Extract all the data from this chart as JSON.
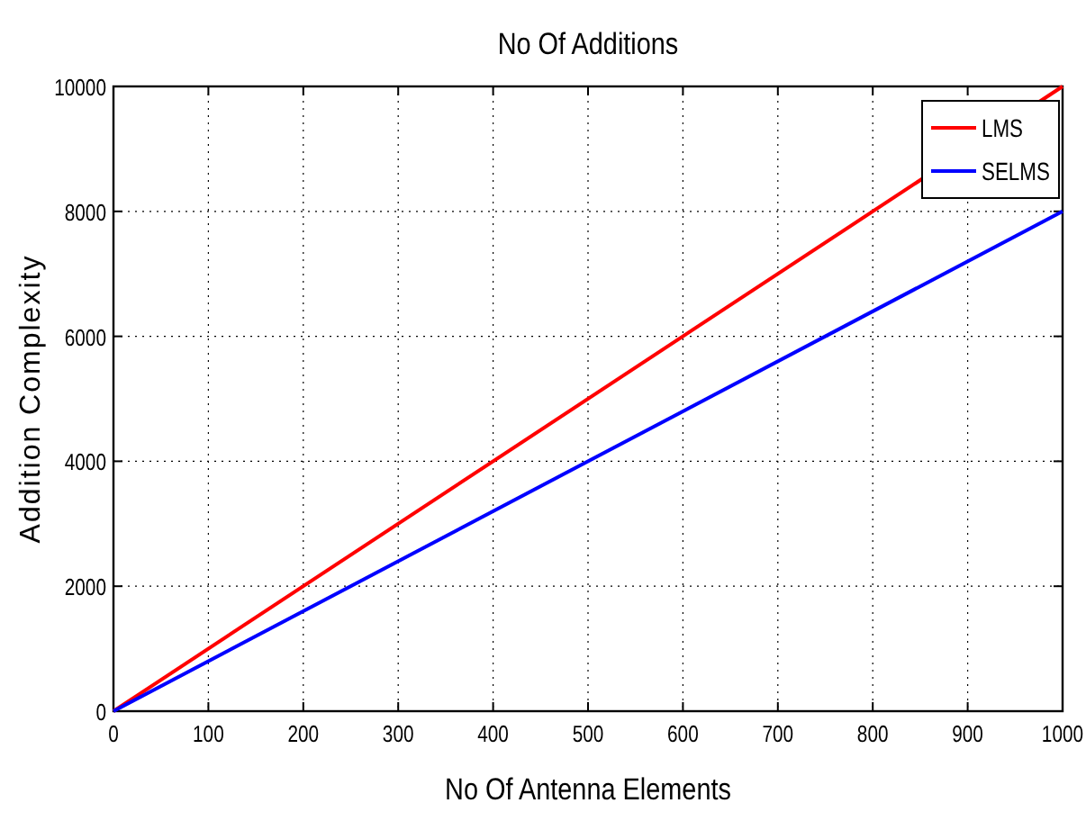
{
  "chart_data": {
    "type": "line",
    "title": "No Of Additions",
    "xlabel": "No Of Antenna Elements",
    "ylabel": "Addition Complexity",
    "x": [
      0,
      1000
    ],
    "series": [
      {
        "name": "LMS",
        "color": "#ff0000",
        "values": [
          0,
          10000
        ]
      },
      {
        "name": "SELMS",
        "color": "#0000ff",
        "values": [
          0,
          8000
        ]
      }
    ],
    "xlim": [
      0,
      1000
    ],
    "xticks": [
      0,
      100,
      200,
      300,
      400,
      500,
      600,
      700,
      800,
      900,
      1000
    ],
    "ylim": [
      0,
      10000
    ],
    "yticks": [
      0,
      2000,
      4000,
      6000,
      8000,
      10000
    ],
    "grid": true,
    "legend": "top right",
    "line_style": "solid"
  }
}
